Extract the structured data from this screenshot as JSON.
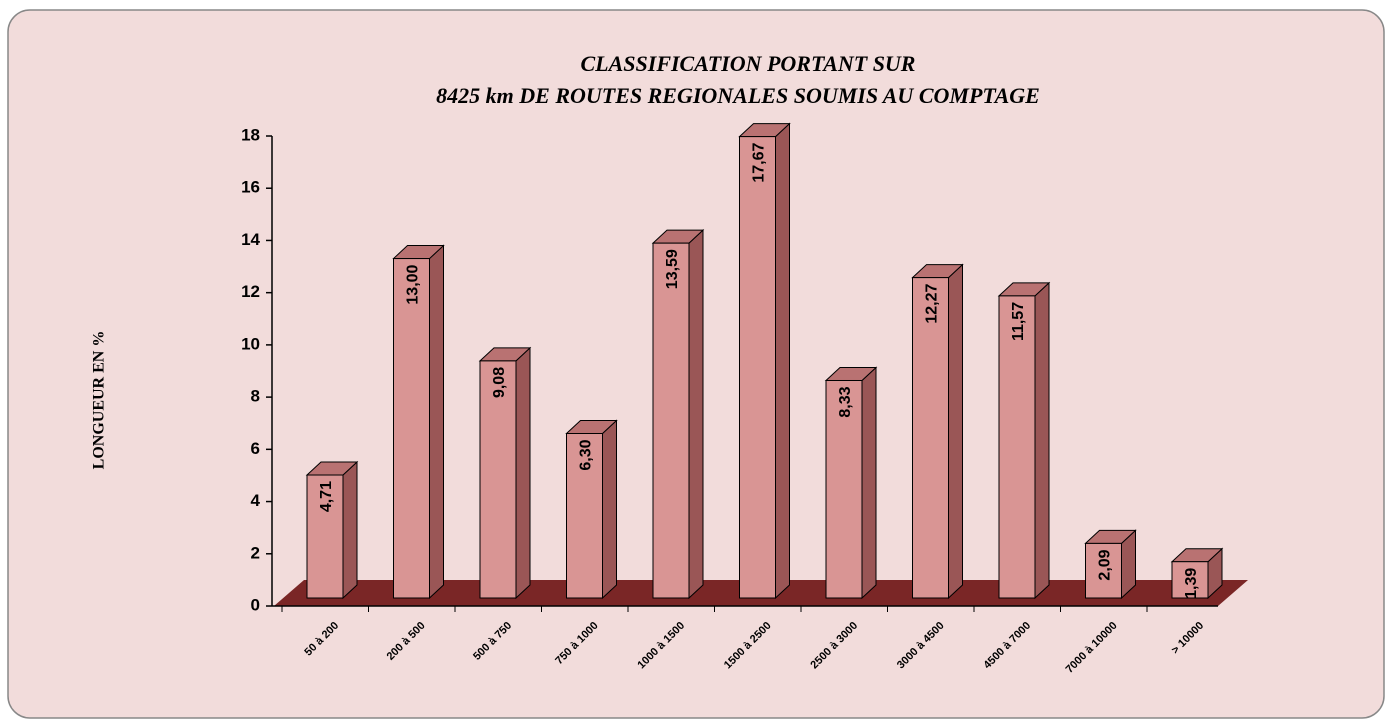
{
  "chart_data": {
    "type": "bar3d",
    "title": [
      "CLASSIFICATION PORTANT SUR",
      "8425 km DE ROUTES REGIONALES SOUMIS AU COMPTAGE"
    ],
    "y_label": "LONGUEUR EN %",
    "categories": [
      "50 à 200",
      "200 à 500",
      "500 à 750",
      "750 à 1000",
      "1000 à 1500",
      "1500 à 2500",
      "2500 à 3000",
      "3000 à 4500",
      "4500 à 7000",
      "7000 à 10000",
      "> 10000"
    ],
    "values": [
      4.71,
      13.0,
      9.08,
      6.3,
      13.59,
      17.67,
      8.33,
      12.27,
      11.57,
      2.09,
      1.39
    ],
    "value_labels": [
      "4,71",
      "13,00",
      "9,08",
      "6,30",
      "13,59",
      "17,67",
      "8,33",
      "12,27",
      "11,57",
      "2,09",
      "1,39"
    ],
    "color": "#d99594",
    "floor_color": "#7a2626",
    "ylim": [
      0,
      18
    ],
    "yticks": [
      0,
      2,
      4,
      6,
      8,
      10,
      12,
      14,
      16,
      18
    ]
  }
}
